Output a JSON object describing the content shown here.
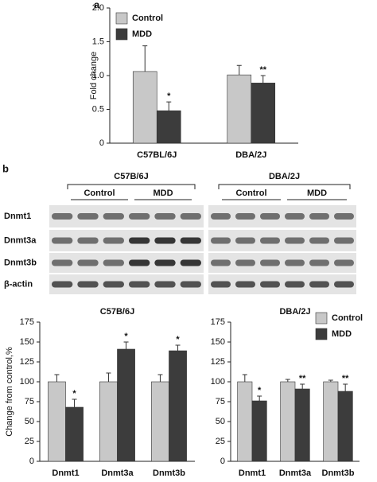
{
  "panel_labels": [
    "a",
    "b"
  ],
  "blot": {
    "groups": [
      "C57B/6J",
      "DBA/2J"
    ],
    "conditions": [
      "Control",
      "MDD",
      "Control",
      "MDD"
    ],
    "rows": [
      "Dnmt1",
      "Dnmt3a",
      "Dnmt3b",
      "β-actin"
    ]
  },
  "chart_data": [
    {
      "type": "bar",
      "ylabel": "Fold change",
      "categories": [
        "C57BL/6J",
        "DBA/2J"
      ],
      "series": [
        {
          "name": "Control",
          "color": "#c8c8c8",
          "values": [
            1.06,
            1.01
          ],
          "errors": [
            0.38,
            0.14
          ],
          "significance": [
            null,
            null
          ]
        },
        {
          "name": "MDD",
          "color": "#3c3c3c",
          "values": [
            0.48,
            0.89
          ],
          "errors": [
            0.13,
            0.11
          ],
          "significance": [
            "*",
            "**"
          ]
        }
      ],
      "ylim": [
        0,
        2
      ],
      "yticks": [
        0,
        0.5,
        {
          "value": 1,
          "label": "1.0"
        },
        1.5,
        {
          "value": 2,
          "label": "2.0"
        }
      ],
      "legend": "upper left"
    },
    {
      "type": "bar",
      "title": "C57B/6J",
      "ylabel": "Change from control,%",
      "categories": [
        "Dnmt1",
        "Dnmt3a",
        "Dnmt3b"
      ],
      "series": [
        {
          "color": "#c8c8c8",
          "values": [
            100,
            100,
            100
          ],
          "errors": [
            9,
            11,
            9
          ],
          "significance": [
            null,
            null,
            null
          ]
        },
        {
          "color": "#3c3c3c",
          "values": [
            68,
            141,
            139
          ],
          "errors": [
            10,
            9,
            7
          ],
          "significance": [
            "*",
            "*",
            "*"
          ]
        }
      ],
      "ylim": [
        0,
        175
      ],
      "yticks": [
        0,
        25,
        50,
        75,
        100,
        125,
        150,
        175
      ]
    },
    {
      "type": "bar",
      "title": "DBA/2J",
      "categories": [
        "Dnmt1",
        "Dnmt3a",
        "Dnmt3b"
      ],
      "series": [
        {
          "name": "Control",
          "color": "#c8c8c8",
          "values": [
            100,
            100,
            100
          ],
          "errors": [
            9,
            3,
            2
          ],
          "significance": [
            null,
            null,
            null
          ]
        },
        {
          "name": "MDD",
          "color": "#3c3c3c",
          "values": [
            76,
            91,
            88
          ],
          "errors": [
            6,
            6,
            9
          ],
          "significance": [
            "*",
            "**",
            "**"
          ]
        }
      ],
      "ylim": [
        0,
        175
      ],
      "yticks": [
        0,
        25,
        50,
        75,
        100,
        125,
        150,
        175
      ],
      "legend": "upper right"
    }
  ]
}
